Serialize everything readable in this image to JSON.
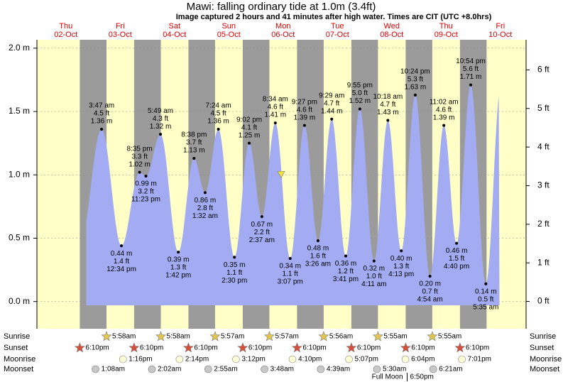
{
  "chart_data": {
    "type": "tide",
    "title": "Mawi: falling  ordinary tide at 1.0m (3.4ft)",
    "subtitle": "Image captured 2 hours and 41 minutes after high water. Times are CIT (UTC +8.0hrs)",
    "ylim": [
      -0.17,
      2.1
    ],
    "yticks": [
      {
        "value": 0,
        "label": "0.0 m"
      },
      {
        "value": 0.5,
        "label": "0.5 m"
      },
      {
        "value": 1,
        "label": "1.0 m"
      },
      {
        "value": 1.5,
        "label": "1.5 m"
      },
      {
        "value": 2,
        "label": "2.0 m"
      }
    ],
    "y2lim": [
      -0.56,
      6.89
    ],
    "y2ticks": [
      {
        "value": 0,
        "label": "0 ft"
      },
      {
        "value": 1,
        "label": "1 ft"
      },
      {
        "value": 2,
        "label": "2 ft"
      },
      {
        "value": 3,
        "label": "3 ft"
      },
      {
        "value": 4,
        "label": "4 ft"
      },
      {
        "value": 5,
        "label": "5 ft"
      },
      {
        "value": 6,
        "label": "6 ft"
      }
    ],
    "current_height": 1.0,
    "colors": {
      "water": "#a3acf2",
      "day": "#ffffc8",
      "night": "#9b9b9b"
    },
    "rows": {
      "sunrise": "Sunrise",
      "sunset": "Sunset",
      "moonrise": "Moonrise",
      "moonset": "Moonset"
    },
    "days": [
      {
        "weekday": "Thu",
        "date": "02-Oct",
        "sunset": "6:10pm"
      },
      {
        "weekday": "Fri",
        "date": "03-Oct",
        "sunrise": "5:58am",
        "sunset": "6:10pm",
        "moonrise": "1:16pm",
        "moonset": "1:08am",
        "extremes": [
          {
            "time": "3:47 am",
            "ft": "4.5 ft",
            "height": 1.36,
            "height_label": "1.36 m"
          },
          {
            "time": "12:34 pm",
            "ft": "1.4 ft",
            "height": 0.44,
            "height_label": "0.44 m"
          },
          {
            "time": "8:35 pm",
            "ft": "3.3 ft",
            "height": 1.02,
            "height_label": "1.02 m"
          },
          {
            "time": "11:23 pm",
            "ft": "3.2 ft",
            "height": 0.99,
            "height_label": "0.99 m"
          }
        ]
      },
      {
        "weekday": "Sat",
        "date": "04-Oct",
        "sunrise": "5:58am",
        "sunset": "6:10pm",
        "moonrise": "2:14pm",
        "moonset": "2:02am",
        "extremes": [
          {
            "time": "5:49 am",
            "ft": "4.3 ft",
            "height": 1.32,
            "height_label": "1.32 m"
          },
          {
            "time": "1:42 pm",
            "ft": "1.3 ft",
            "height": 0.39,
            "height_label": "0.39 m"
          },
          {
            "time": "8:38 pm",
            "ft": "3.7 ft",
            "height": 1.13,
            "height_label": "1.13 m"
          }
        ]
      },
      {
        "weekday": "Sun",
        "date": "05-Oct",
        "sunrise": "5:57am",
        "sunset": "6:10pm",
        "moonrise": "3:12pm",
        "moonset": "2:55am",
        "extremes": [
          {
            "time": "1:32 am",
            "ft": "2.8 ft",
            "height": 0.86,
            "height_label": "0.86 m"
          },
          {
            "time": "7:24 am",
            "ft": "4.5 ft",
            "height": 1.36,
            "height_label": "1.36 m"
          },
          {
            "time": "2:30 pm",
            "ft": "1.1 ft",
            "height": 0.35,
            "height_label": "0.35 m"
          },
          {
            "time": "9:02 pm",
            "ft": "4.1 ft",
            "height": 1.25,
            "height_label": "1.25 m"
          }
        ]
      },
      {
        "weekday": "Mon",
        "date": "06-Oct",
        "sunrise": "5:57am",
        "sunset": "6:10pm",
        "moonrise": "4:10pm",
        "moonset": "3:48am",
        "extremes": [
          {
            "time": "2:37 am",
            "ft": "2.2 ft",
            "height": 0.67,
            "height_label": "0.67 m"
          },
          {
            "time": "8:34 am",
            "ft": "4.6 ft",
            "height": 1.41,
            "height_label": "1.41 m"
          },
          {
            "time": "3:07 pm",
            "ft": "1.1 ft",
            "height": 0.34,
            "height_label": "0.34 m"
          },
          {
            "time": "9:27 pm",
            "ft": "4.6 ft",
            "height": 1.39,
            "height_label": "1.39 m"
          }
        ]
      },
      {
        "weekday": "Tue",
        "date": "07-Oct",
        "sunrise": "5:56am",
        "sunset": "6:10pm",
        "moonrise": "5:07pm",
        "moonset": "4:39am",
        "extremes": [
          {
            "time": "3:26 am",
            "ft": "1.6 ft",
            "height": 0.48,
            "height_label": "0.48 m"
          },
          {
            "time": "9:29 am",
            "ft": "4.7 ft",
            "height": 1.44,
            "height_label": "1.44 m"
          },
          {
            "time": "3:41 pm",
            "ft": "1.2 ft",
            "height": 0.36,
            "height_label": "0.36 m"
          },
          {
            "time": "9:55 pm",
            "ft": "5.0 ft",
            "height": 1.52,
            "height_label": "1.52 m"
          }
        ]
      },
      {
        "weekday": "Wed",
        "date": "08-Oct",
        "sunrise": "5:55am",
        "sunset": "6:10pm",
        "moonrise": "6:04pm",
        "moonset": "5:30am",
        "moon_phase": "Full Moon",
        "moon_phase_time": "6:50pm",
        "extremes": [
          {
            "time": "4:11 am",
            "ft": "1.0 ft",
            "height": 0.32,
            "height_label": "0.32 m"
          },
          {
            "time": "10:18 am",
            "ft": "4.7 ft",
            "height": 1.43,
            "height_label": "1.43 m"
          },
          {
            "time": "4:13 pm",
            "ft": "1.3 ft",
            "height": 0.4,
            "height_label": "0.40 m"
          },
          {
            "time": "10:24 pm",
            "ft": "5.3 ft",
            "height": 1.63,
            "height_label": "1.63 m"
          }
        ]
      },
      {
        "weekday": "Thu",
        "date": "09-Oct",
        "sunrise": "5:55am",
        "sunset": "6:10pm",
        "moonrise": "7:01pm",
        "moonset": "6:21am",
        "extremes": [
          {
            "time": "4:54 am",
            "ft": "0.7 ft",
            "height": 0.2,
            "height_label": "0.20 m"
          },
          {
            "time": "11:02 am",
            "ft": "4.6 ft",
            "height": 1.39,
            "height_label": "1.39 m"
          },
          {
            "time": "4:40 pm",
            "ft": "1.5 ft",
            "height": 0.46,
            "height_label": "0.46 m"
          },
          {
            "time": "10:54 pm",
            "ft": "5.6 ft",
            "height": 1.71,
            "height_label": "1.71 m"
          }
        ]
      },
      {
        "weekday": "Fri",
        "date": "10-Oct",
        "extremes": [
          {
            "time": "5:35 am",
            "ft": "0.5 ft",
            "height": 0.14,
            "height_label": "0.14 m"
          }
        ]
      }
    ]
  }
}
